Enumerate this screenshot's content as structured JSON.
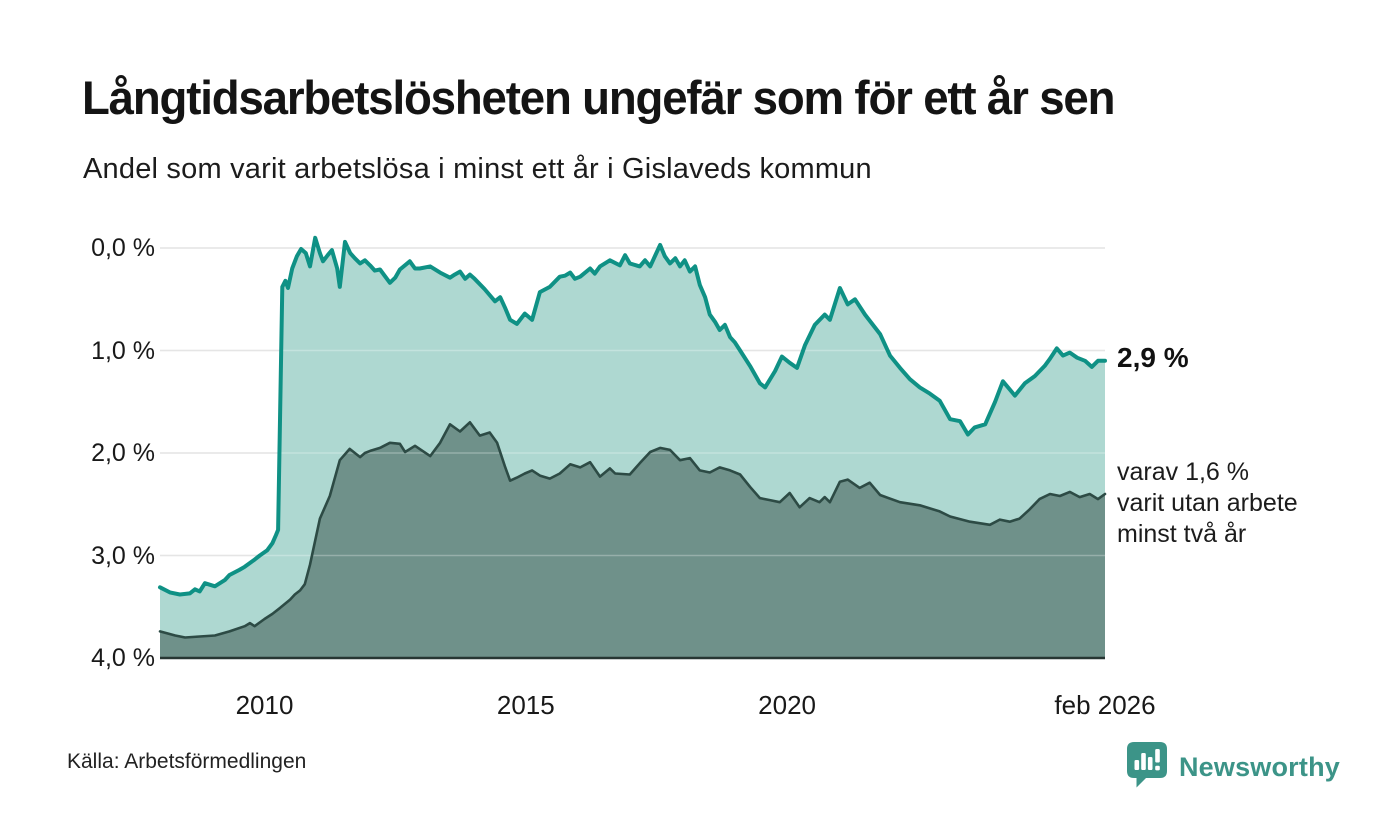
{
  "chart_data": {
    "type": "area",
    "title": "Långtidsarbetslösheten ungefär som för ett år sen",
    "subtitle": "Andel som varit arbetslösa i minst ett år i Gislaveds kommun",
    "x_axis": {
      "range": [
        2008.0,
        2026.0833
      ],
      "gridlines": false,
      "ticks": [
        {
          "year": 2010,
          "label": "2010"
        },
        {
          "year": 2015,
          "label": "2015"
        },
        {
          "year": 2020,
          "label": "2020"
        },
        {
          "year": 2026.0833,
          "label": "feb 2026"
        }
      ]
    },
    "y_axis": {
      "unit": "%",
      "range": [
        0,
        4.1
      ],
      "gridlines": true,
      "ticks": [
        {
          "value": 0,
          "label": "0,0 %"
        },
        {
          "value": 1,
          "label": "1,0 %"
        },
        {
          "value": 2,
          "label": "2,0 %"
        },
        {
          "value": 3,
          "label": "3,0 %"
        },
        {
          "value": 4,
          "label": "4,0 %"
        }
      ]
    },
    "palette": {
      "line_min1yr": "#0f9185",
      "fill_min1yr": "#aed8d1",
      "line_min2yr": "#2d4b45",
      "fill_min2yr": "#6f918a",
      "gridline": "#dcdcdc",
      "gridline_overlay": "rgba(255,255,255,0.28)",
      "baseline": "#273633",
      "brand_teal": "#3c9488"
    },
    "series": [
      {
        "name": "Andel som varit arbetslösa minst ett år",
        "points": [
          [
            2008.0,
            0.69
          ],
          [
            2008.19,
            0.64
          ],
          [
            2008.38,
            0.62
          ],
          [
            2008.57,
            0.63
          ],
          [
            2008.67,
            0.67
          ],
          [
            2008.76,
            0.65
          ],
          [
            2008.86,
            0.73
          ],
          [
            2009.05,
            0.7
          ],
          [
            2009.24,
            0.76
          ],
          [
            2009.33,
            0.81
          ],
          [
            2009.52,
            0.86
          ],
          [
            2009.62,
            0.89
          ],
          [
            2009.81,
            0.96
          ],
          [
            2009.91,
            1.0
          ],
          [
            2010.05,
            1.05
          ],
          [
            2010.15,
            1.12
          ],
          [
            2010.22,
            1.2
          ],
          [
            2010.26,
            1.25
          ],
          [
            2010.34,
            3.62
          ],
          [
            2010.4,
            3.68
          ],
          [
            2010.45,
            3.61
          ],
          [
            2010.53,
            3.8
          ],
          [
            2010.62,
            3.92
          ],
          [
            2010.7,
            3.99
          ],
          [
            2010.79,
            3.95
          ],
          [
            2010.87,
            3.82
          ],
          [
            2010.97,
            4.1
          ],
          [
            2011.06,
            3.95
          ],
          [
            2011.12,
            3.87
          ],
          [
            2011.21,
            3.93
          ],
          [
            2011.29,
            3.98
          ],
          [
            2011.39,
            3.8
          ],
          [
            2011.44,
            3.62
          ],
          [
            2011.54,
            4.06
          ],
          [
            2011.64,
            3.95
          ],
          [
            2011.73,
            3.9
          ],
          [
            2011.83,
            3.85
          ],
          [
            2011.92,
            3.88
          ],
          [
            2012.02,
            3.83
          ],
          [
            2012.11,
            3.78
          ],
          [
            2012.21,
            3.79
          ],
          [
            2012.4,
            3.66
          ],
          [
            2012.5,
            3.71
          ],
          [
            2012.59,
            3.79
          ],
          [
            2012.78,
            3.87
          ],
          [
            2012.88,
            3.8
          ],
          [
            2012.97,
            3.8
          ],
          [
            2013.17,
            3.82
          ],
          [
            2013.36,
            3.76
          ],
          [
            2013.55,
            3.71
          ],
          [
            2013.64,
            3.74
          ],
          [
            2013.74,
            3.77
          ],
          [
            2013.84,
            3.7
          ],
          [
            2013.93,
            3.74
          ],
          [
            2014.02,
            3.7
          ],
          [
            2014.21,
            3.6
          ],
          [
            2014.41,
            3.48
          ],
          [
            2014.51,
            3.52
          ],
          [
            2014.6,
            3.42
          ],
          [
            2014.7,
            3.3
          ],
          [
            2014.83,
            3.26
          ],
          [
            2014.98,
            3.36
          ],
          [
            2015.12,
            3.3
          ],
          [
            2015.27,
            3.57
          ],
          [
            2015.46,
            3.62
          ],
          [
            2015.65,
            3.72
          ],
          [
            2015.75,
            3.73
          ],
          [
            2015.85,
            3.76
          ],
          [
            2015.94,
            3.7
          ],
          [
            2016.04,
            3.72
          ],
          [
            2016.23,
            3.8
          ],
          [
            2016.32,
            3.75
          ],
          [
            2016.42,
            3.82
          ],
          [
            2016.61,
            3.88
          ],
          [
            2016.8,
            3.83
          ],
          [
            2016.9,
            3.93
          ],
          [
            2016.99,
            3.85
          ],
          [
            2017.18,
            3.82
          ],
          [
            2017.28,
            3.88
          ],
          [
            2017.38,
            3.82
          ],
          [
            2017.57,
            4.03
          ],
          [
            2017.66,
            3.92
          ],
          [
            2017.76,
            3.85
          ],
          [
            2017.86,
            3.9
          ],
          [
            2017.95,
            3.82
          ],
          [
            2018.04,
            3.88
          ],
          [
            2018.14,
            3.77
          ],
          [
            2018.24,
            3.82
          ],
          [
            2018.33,
            3.64
          ],
          [
            2018.43,
            3.52
          ],
          [
            2018.52,
            3.35
          ],
          [
            2018.62,
            3.28
          ],
          [
            2018.71,
            3.2
          ],
          [
            2018.81,
            3.25
          ],
          [
            2018.91,
            3.13
          ],
          [
            2019.0,
            3.08
          ],
          [
            2019.1,
            3.0
          ],
          [
            2019.29,
            2.85
          ],
          [
            2019.48,
            2.68
          ],
          [
            2019.58,
            2.64
          ],
          [
            2019.77,
            2.8
          ],
          [
            2019.9,
            2.94
          ],
          [
            2020.05,
            2.88
          ],
          [
            2020.19,
            2.83
          ],
          [
            2020.34,
            3.05
          ],
          [
            2020.53,
            3.25
          ],
          [
            2020.72,
            3.35
          ],
          [
            2020.82,
            3.3
          ],
          [
            2021.01,
            3.61
          ],
          [
            2021.16,
            3.45
          ],
          [
            2021.3,
            3.5
          ],
          [
            2021.49,
            3.35
          ],
          [
            2021.78,
            3.16
          ],
          [
            2021.97,
            2.95
          ],
          [
            2022.16,
            2.83
          ],
          [
            2022.35,
            2.72
          ],
          [
            2022.54,
            2.64
          ],
          [
            2022.73,
            2.58
          ],
          [
            2022.92,
            2.51
          ],
          [
            2023.12,
            2.33
          ],
          [
            2023.31,
            2.31
          ],
          [
            2023.46,
            2.18
          ],
          [
            2023.59,
            2.25
          ],
          [
            2023.79,
            2.28
          ],
          [
            2023.98,
            2.5
          ],
          [
            2024.13,
            2.7
          ],
          [
            2024.26,
            2.62
          ],
          [
            2024.36,
            2.56
          ],
          [
            2024.55,
            2.68
          ],
          [
            2024.74,
            2.75
          ],
          [
            2024.93,
            2.85
          ],
          [
            2025.03,
            2.92
          ],
          [
            2025.16,
            3.02
          ],
          [
            2025.28,
            2.95
          ],
          [
            2025.41,
            2.98
          ],
          [
            2025.55,
            2.93
          ],
          [
            2025.7,
            2.9
          ],
          [
            2025.83,
            2.84
          ],
          [
            2025.95,
            2.9
          ],
          [
            2026.083,
            2.9
          ]
        ]
      },
      {
        "name": "Andel som varit utan arbete minst två år",
        "points": [
          [
            2008.0,
            0.26
          ],
          [
            2008.29,
            0.22
          ],
          [
            2008.48,
            0.2
          ],
          [
            2008.76,
            0.21
          ],
          [
            2009.05,
            0.22
          ],
          [
            2009.33,
            0.26
          ],
          [
            2009.62,
            0.31
          ],
          [
            2009.72,
            0.34
          ],
          [
            2009.81,
            0.31
          ],
          [
            2010.0,
            0.38
          ],
          [
            2010.15,
            0.43
          ],
          [
            2010.3,
            0.49
          ],
          [
            2010.49,
            0.57
          ],
          [
            2010.58,
            0.62
          ],
          [
            2010.68,
            0.66
          ],
          [
            2010.77,
            0.72
          ],
          [
            2010.87,
            0.91
          ],
          [
            2011.06,
            1.36
          ],
          [
            2011.25,
            1.58
          ],
          [
            2011.44,
            1.93
          ],
          [
            2011.63,
            2.04
          ],
          [
            2011.83,
            1.96
          ],
          [
            2011.92,
            2.0
          ],
          [
            2012.02,
            2.02
          ],
          [
            2012.21,
            2.05
          ],
          [
            2012.4,
            2.1
          ],
          [
            2012.59,
            2.09
          ],
          [
            2012.69,
            2.01
          ],
          [
            2012.88,
            2.07
          ],
          [
            2013.17,
            1.97
          ],
          [
            2013.36,
            2.1
          ],
          [
            2013.55,
            2.28
          ],
          [
            2013.74,
            2.21
          ],
          [
            2013.93,
            2.3
          ],
          [
            2014.12,
            2.17
          ],
          [
            2014.31,
            2.2
          ],
          [
            2014.45,
            2.1
          ],
          [
            2014.6,
            1.87
          ],
          [
            2014.7,
            1.73
          ],
          [
            2014.83,
            1.76
          ],
          [
            2014.98,
            1.8
          ],
          [
            2015.12,
            1.83
          ],
          [
            2015.27,
            1.78
          ],
          [
            2015.46,
            1.75
          ],
          [
            2015.65,
            1.8
          ],
          [
            2015.85,
            1.89
          ],
          [
            2016.04,
            1.86
          ],
          [
            2016.23,
            1.91
          ],
          [
            2016.42,
            1.77
          ],
          [
            2016.61,
            1.85
          ],
          [
            2016.71,
            1.8
          ],
          [
            2016.99,
            1.79
          ],
          [
            2017.18,
            1.9
          ],
          [
            2017.38,
            2.01
          ],
          [
            2017.57,
            2.05
          ],
          [
            2017.76,
            2.03
          ],
          [
            2017.95,
            1.93
          ],
          [
            2018.14,
            1.95
          ],
          [
            2018.33,
            1.83
          ],
          [
            2018.52,
            1.81
          ],
          [
            2018.71,
            1.86
          ],
          [
            2018.91,
            1.83
          ],
          [
            2019.1,
            1.79
          ],
          [
            2019.29,
            1.67
          ],
          [
            2019.48,
            1.56
          ],
          [
            2019.67,
            1.54
          ],
          [
            2019.86,
            1.52
          ],
          [
            2020.05,
            1.61
          ],
          [
            2020.24,
            1.47
          ],
          [
            2020.43,
            1.56
          ],
          [
            2020.62,
            1.52
          ],
          [
            2020.72,
            1.57
          ],
          [
            2020.82,
            1.52
          ],
          [
            2021.01,
            1.72
          ],
          [
            2021.16,
            1.74
          ],
          [
            2021.39,
            1.66
          ],
          [
            2021.58,
            1.71
          ],
          [
            2021.78,
            1.59
          ],
          [
            2022.16,
            1.52
          ],
          [
            2022.54,
            1.49
          ],
          [
            2022.92,
            1.43
          ],
          [
            2023.12,
            1.38
          ],
          [
            2023.5,
            1.33
          ],
          [
            2023.88,
            1.3
          ],
          [
            2024.07,
            1.35
          ],
          [
            2024.26,
            1.33
          ],
          [
            2024.45,
            1.36
          ],
          [
            2024.64,
            1.45
          ],
          [
            2024.83,
            1.55
          ],
          [
            2025.03,
            1.6
          ],
          [
            2025.22,
            1.58
          ],
          [
            2025.41,
            1.62
          ],
          [
            2025.6,
            1.57
          ],
          [
            2025.79,
            1.6
          ],
          [
            2025.95,
            1.55
          ],
          [
            2026.083,
            1.6
          ]
        ]
      }
    ],
    "annotations": {
      "latest_value": 2.9,
      "latest_label": "2,9 %",
      "sub_value": 1.6,
      "sub_lines": [
        "varav 1,6 %",
        "varit utan arbete",
        "minst två år"
      ]
    }
  },
  "footer": {
    "source": "Källa: Arbetsförmedlingen",
    "brand": "Newsworthy"
  }
}
